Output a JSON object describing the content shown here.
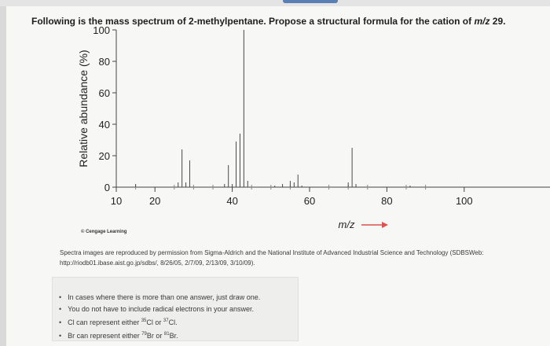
{
  "question": {
    "prefix": "Following is the mass spectrum of 2-methylpentane. Propose a structural formula for the cation of ",
    "mz": "m/z",
    "value": "29."
  },
  "chart_data": {
    "type": "bar",
    "title": "",
    "ylabel": "Relative abundance (%)",
    "xlabel": "m/z",
    "ylim": [
      0,
      100
    ],
    "xlim": [
      10,
      90
    ],
    "y_ticks": [
      "0",
      "20",
      "40",
      "60",
      "80",
      "100"
    ],
    "x_ticks": [
      "10",
      "20",
      "40",
      "60",
      "80",
      "100"
    ],
    "x": [
      15,
      26,
      27,
      28,
      29,
      38,
      39,
      40,
      41,
      42,
      43,
      44,
      51,
      53,
      55,
      56,
      57,
      58,
      70,
      71,
      72,
      86
    ],
    "values": [
      2,
      3,
      24,
      3,
      17,
      2,
      14,
      2,
      29,
      34,
      100,
      4,
      1,
      2,
      4,
      3,
      8,
      1,
      3,
      25,
      2,
      1
    ]
  },
  "credit": "© Cengage Learning",
  "sources_line1": "Spectra images are reproduced by permission from Sigma-Aldrich and the National Institute of Advanced Industrial Science and Technology (SDBSWeb:",
  "sources_line2": "http://riodb01.ibase.aist.go.jp/sdbs/, 8/26/05, 2/7/09, 2/13/09, 3/10/09).",
  "hints": {
    "item1": "In cases where there is more than one answer, just draw one.",
    "item2": "You do not have to include radical electrons in your answer.",
    "item3_pre": "Cl can represent either ",
    "item3_sup1": "35",
    "item3_mid": "Cl or ",
    "item3_sup2": "37",
    "item3_post": "Cl.",
    "item4_pre": "Br can represent either ",
    "item4_sup1": "79",
    "item4_mid": "Br or ",
    "item4_sup2": "81",
    "item4_post": "Br."
  }
}
